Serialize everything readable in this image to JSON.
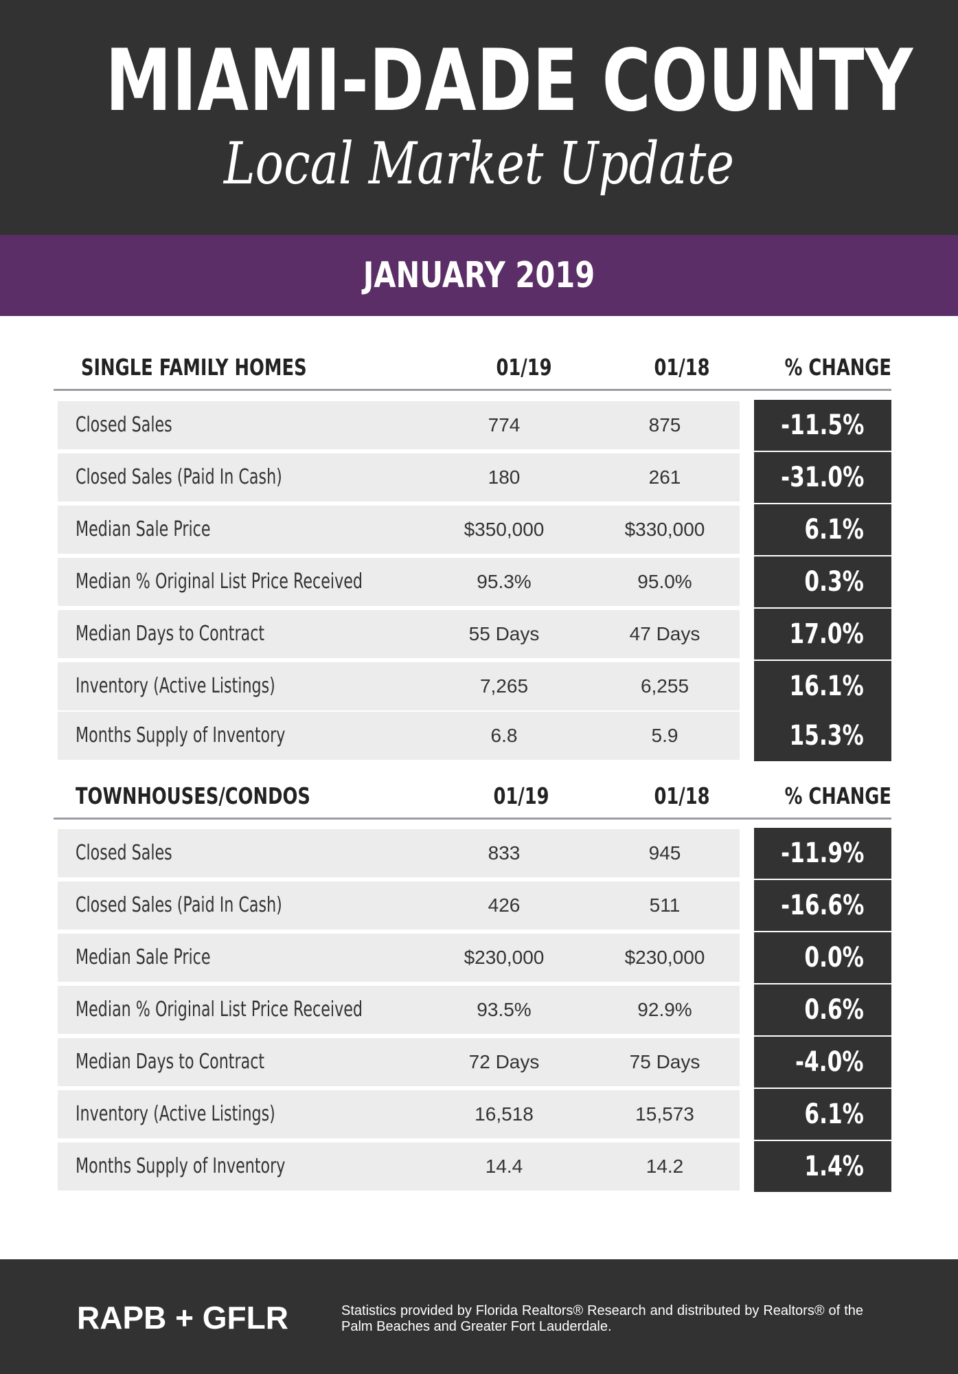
{
  "header": {
    "title": "MIAMI-DADE COUNTY",
    "subtitle": "Local Market Update"
  },
  "period": "JANUARY 2019",
  "sections": [
    {
      "label": "SINGLE FAMILY HOMES",
      "col1": "01/19",
      "col2": "01/18",
      "col3": "% CHANGE",
      "rows": [
        {
          "label": "Closed Sales",
          "v1": "774",
          "v2": "875",
          "change": "-11.5%"
        },
        {
          "label": "Closed Sales (Paid In Cash)",
          "v1": "180",
          "v2": "261",
          "change": "-31.0%"
        },
        {
          "label": "Median Sale Price",
          "v1": "$350,000",
          "v2": "$330,000",
          "change": "6.1%"
        },
        {
          "label": "Median % Original List Price Received",
          "v1": "95.3%",
          "v2": "95.0%",
          "change": "0.3%"
        },
        {
          "label": "Median Days to Contract",
          "v1": "55 Days",
          "v2": "47 Days",
          "change": "17.0%"
        },
        {
          "label": "Inventory (Active Listings)",
          "v1": "7,265",
          "v2": "6,255",
          "change": "16.1%"
        },
        {
          "label": "Months Supply of Inventory",
          "v1": "6.8",
          "v2": "5.9",
          "change": "15.3%"
        }
      ]
    },
    {
      "label": "TOWNHOUSES/CONDOS",
      "col1": "01/19",
      "col2": "01/18",
      "col3": "% CHANGE",
      "rows": [
        {
          "label": "Closed Sales",
          "v1": "833",
          "v2": "945",
          "change": "-11.9%"
        },
        {
          "label": "Closed Sales (Paid In Cash)",
          "v1": "426",
          "v2": "511",
          "change": "-16.6%"
        },
        {
          "label": "Median Sale Price",
          "v1": "$230,000",
          "v2": "$230,000",
          "change": "0.0%"
        },
        {
          "label": "Median % Original List Price Received",
          "v1": "93.5%",
          "v2": "92.9%",
          "change": "0.6%"
        },
        {
          "label": "Median Days to Contract",
          "v1": "72 Days",
          "v2": "75 Days",
          "change": "-4.0%"
        },
        {
          "label": "Inventory (Active Listings)",
          "v1": "16,518",
          "v2": "15,573",
          "change": "6.1%"
        },
        {
          "label": "Months Supply of Inventory",
          "v1": "14.4",
          "v2": "14.2",
          "change": "1.4%"
        }
      ]
    }
  ],
  "footer": {
    "brand": "RAPB + GFLR",
    "credit": "Statistics provided by Florida Realtors® Research and distributed by Realtors® of the Palm Beaches and Greater Fort Lauderdale."
  }
}
